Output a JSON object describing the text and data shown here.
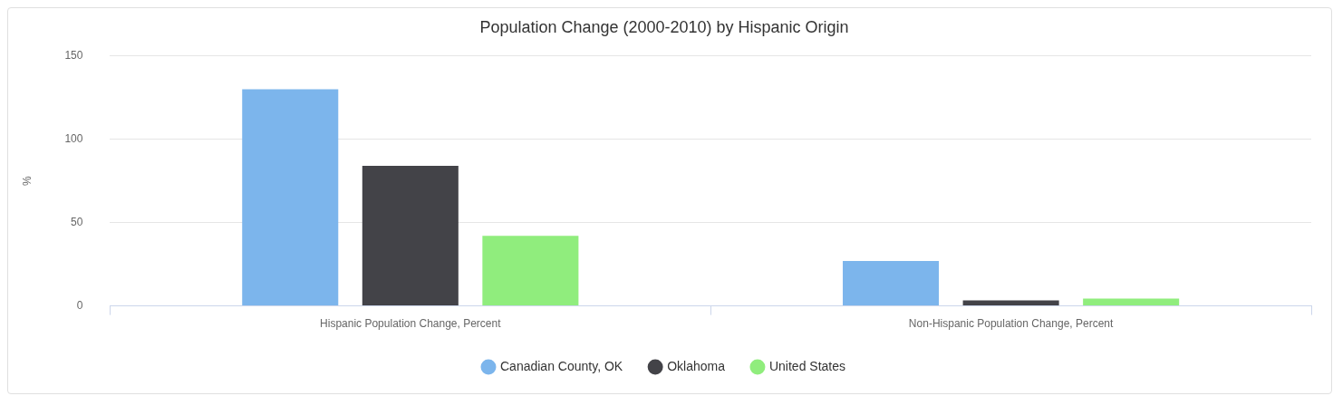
{
  "chart_data": {
    "type": "bar",
    "title": "Population Change (2000-2010) by Hispanic Origin",
    "ylabel": "%",
    "categories": [
      "Hispanic Population Change, Percent",
      "Non-Hispanic Population Change, Percent"
    ],
    "series": [
      {
        "name": "Canadian County, OK",
        "color": "#7cb5ec",
        "values": [
          130,
          27
        ]
      },
      {
        "name": "Oklahoma",
        "color": "#434348",
        "values": [
          84,
          3.3
        ]
      },
      {
        "name": "United States",
        "color": "#90ed7d",
        "values": [
          42,
          4.4
        ]
      }
    ],
    "ylim": [
      0,
      150
    ],
    "yticks": [
      0,
      50,
      100,
      150
    ],
    "grid": "y",
    "legend": "bottom"
  }
}
